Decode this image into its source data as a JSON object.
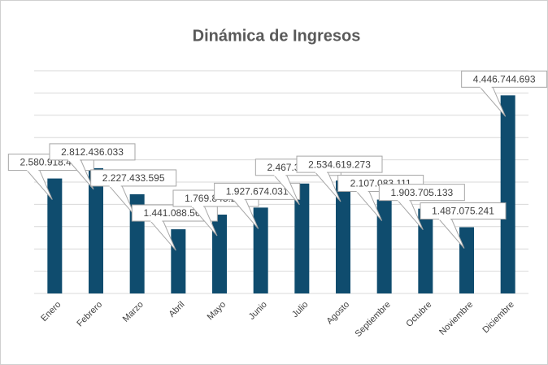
{
  "chart_data": {
    "type": "bar",
    "title": "Dinámica de Ingresos",
    "categories": [
      "Enero",
      "Febrero",
      "Marzo",
      "Abril",
      "Mayo",
      "Junio",
      "Julio",
      "Agosto",
      "Septiembre",
      "Octubre",
      "Noviembre",
      "Diciembre"
    ],
    "values": [
      2580918412,
      2812436033,
      2227433595,
      1441088562,
      1769845210,
      1927674031,
      2467390518,
      2534619273,
      2107083111,
      1903705133,
      1487075241,
      4446744693
    ],
    "value_labels": [
      "2.580.918.412",
      "2.812.436.033",
      "2.227.433.595",
      "1.441.088.562",
      "1.769.845.210",
      "1.927.674.031",
      "2.467.390.518",
      "2.534.619.273",
      "2.107.083.111",
      "1.903.705.133",
      "1.487.075.241",
      "4.446.744.693"
    ],
    "color": "#0f4c6e",
    "ylim": [
      0,
      5000000000
    ],
    "yticks": [
      0,
      500000000,
      1000000000,
      1500000000,
      2000000000,
      2500000000,
      3000000000,
      3500000000,
      4000000000,
      4500000000,
      5000000000
    ],
    "grid": true
  }
}
